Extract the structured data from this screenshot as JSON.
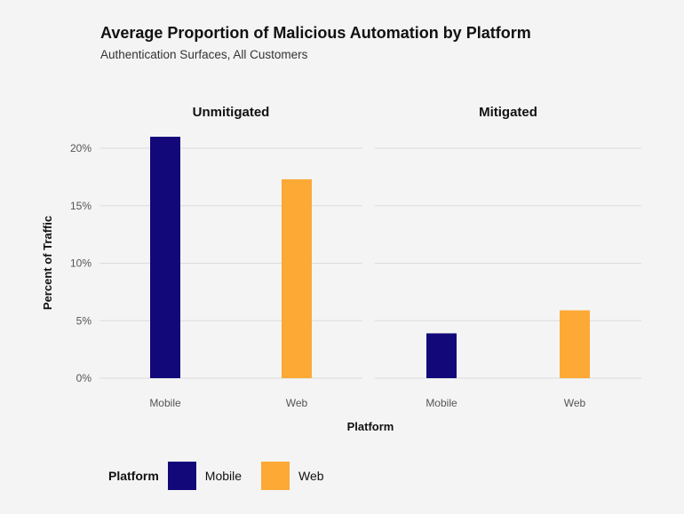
{
  "chart_data": {
    "type": "bar",
    "title": "Average Proportion of Malicious Automation by Platform",
    "subtitle": "Authentication Surfaces, All Customers",
    "xlabel": "Platform",
    "ylabel": "Percent of Traffic",
    "ylim": [
      0,
      22.5
    ],
    "yticks": [
      0,
      5,
      10,
      15,
      20
    ],
    "ytick_labels": [
      "0%",
      "5%",
      "10%",
      "15%",
      "20%"
    ],
    "grid": true,
    "facets": [
      {
        "label": "Unmitigated",
        "categories": [
          "Mobile",
          "Web"
        ],
        "values": [
          21.0,
          17.3
        ]
      },
      {
        "label": "Mitigated",
        "categories": [
          "Mobile",
          "Web"
        ],
        "values": [
          3.9,
          5.9
        ]
      }
    ],
    "legend": {
      "title": "Platform",
      "placement": "bottom-left",
      "entries": [
        {
          "name": "Mobile",
          "color": "#12087a"
        },
        {
          "name": "Web",
          "color": "#fca935"
        }
      ]
    }
  }
}
